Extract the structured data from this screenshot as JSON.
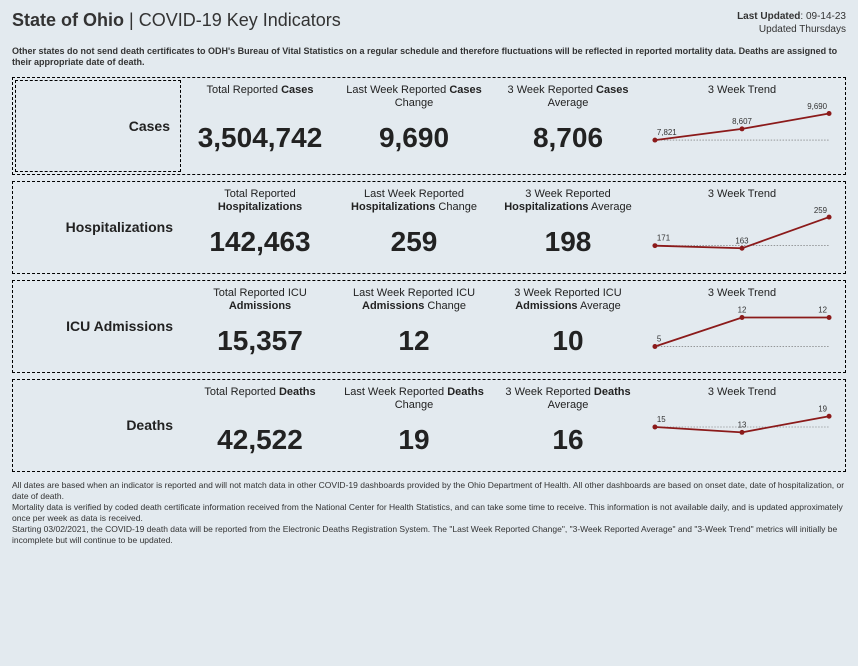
{
  "header": {
    "state": "State of Ohio",
    "subtitle": "COVID-19 Key Indicators",
    "last_updated_label": "Last Updated",
    "last_updated_value": "09-14-23",
    "updated_schedule": "Updated Thursdays"
  },
  "disclaimer": "Other states do not send death certificates to ODH's Bureau of Vital Statistics on a regular schedule and therefore fluctuations will be reflected in reported mortality data. Deaths are assigned to their appropriate date of death.",
  "trend_label": "3 Week Trend",
  "rows": [
    {
      "name": "Cases",
      "total_label_pre": "Total Reported ",
      "total_label_bold": "Cases",
      "total": "3,504,742",
      "change_label_pre": "Last Week Reported ",
      "change_label_bold": "Cases",
      "change_label_post": " Change",
      "change": "9,690",
      "avg_label_pre": "3 Week Reported ",
      "avg_label_bold": "Cases",
      "avg_label_post": " Average",
      "avg": "8,706",
      "trend": {
        "values": [
          7821,
          8607,
          9690
        ],
        "ymin": 7000,
        "ymax": 10200,
        "color": "#8b1a1a"
      }
    },
    {
      "name": "Hospitalizations",
      "total_label_pre": "Total Reported ",
      "total_label_bold": "Hospitalizations",
      "total": "142,463",
      "change_label_pre": "Last Week Reported ",
      "change_label_bold": "Hospitalizations",
      "change_label_post": " Change",
      "change": "259",
      "avg_label_pre": "3 Week Reported ",
      "avg_label_bold": "Hospitalizations",
      "avg_label_post": " Average",
      "avg": "198",
      "trend": {
        "values": [
          171,
          163,
          259
        ],
        "ymin": 140,
        "ymax": 280,
        "color": "#8b1a1a"
      }
    },
    {
      "name": "ICU Admissions",
      "total_label_pre": "Total Reported ICU ",
      "total_label_bold": "Admissions",
      "total": "15,357",
      "change_label_pre": "Last Week Reported ICU ",
      "change_label_bold": "Admissions",
      "change_label_post": " Change",
      "change": "12",
      "avg_label_pre": "3 Week Reported ICU ",
      "avg_label_bold": "Admissions",
      "avg_label_post": " Average",
      "avg": "10",
      "trend": {
        "values": [
          5,
          12,
          12
        ],
        "ymin": 3,
        "ymax": 14,
        "color": "#8b1a1a"
      }
    },
    {
      "name": "Deaths",
      "total_label_pre": "Total Reported ",
      "total_label_bold": "Deaths",
      "total": "42,522",
      "change_label_pre": "Last Week Reported ",
      "change_label_bold": "Deaths",
      "change_label_post": " Change",
      "change": "19",
      "avg_label_pre": "3 Week Reported ",
      "avg_label_bold": "Deaths",
      "avg_label_post": " Average",
      "avg": "16",
      "trend": {
        "values": [
          15,
          13,
          19
        ],
        "ymin": 5,
        "ymax": 22,
        "color": "#8b1a1a"
      }
    }
  ],
  "footer": [
    "All dates are based when an indicator is reported and will not match data in other COVID-19 dashboards provided by the Ohio Department of Health. All other dashboards are based on onset date, date of hospitalization, or date of death.",
    "Mortality data is verified by coded death certificate information received from the National Center for Health Statistics, and can take some time to receive. This information is not available daily, and is updated approximately once per week as data is received.",
    "Starting 03/02/2021, the COVID-19 death data will be reported from the Electronic Deaths Registration System. The \"Last Week Reported Change\", \"3-Week Reported Average\" and \"3-Week Trend\" metrics will initially be incomplete but will continue to be updated."
  ]
}
